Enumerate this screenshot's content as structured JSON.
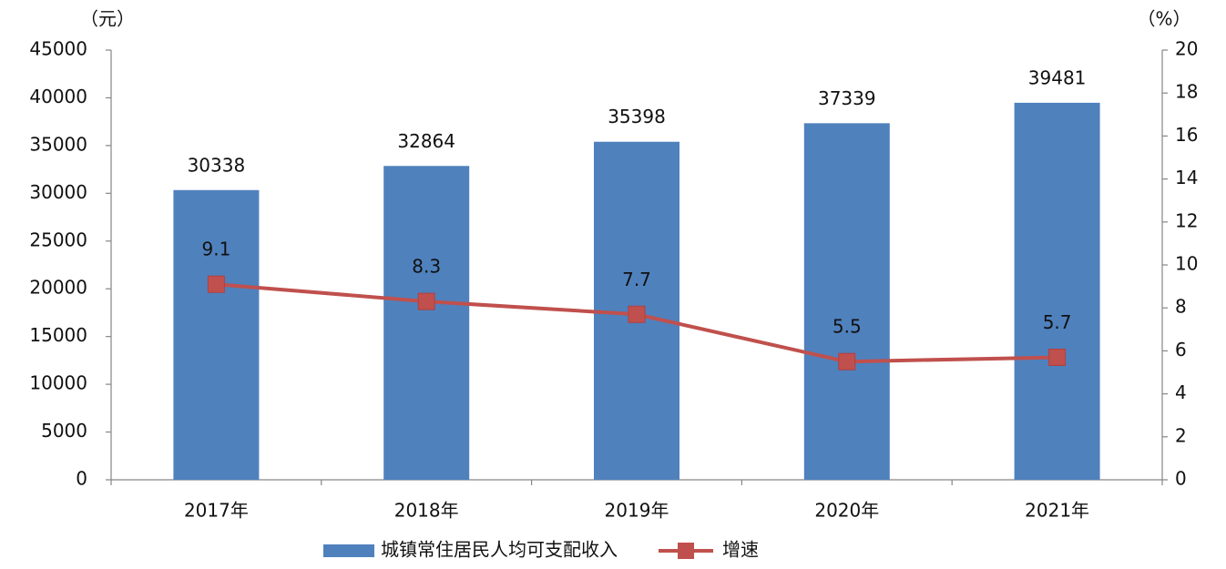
{
  "chart_data": {
    "type": "bar",
    "y_label": "（元）",
    "y2_label": "（%）",
    "categories": [
      "2017年",
      "2018年",
      "2019年",
      "2020年",
      "2021年"
    ],
    "series": [
      {
        "name": "城镇常住居民人均可支配收入",
        "type": "bar",
        "color": "#4f81bd",
        "values": [
          30338,
          32864,
          35398,
          37339,
          39481
        ]
      },
      {
        "name": "增速",
        "type": "line",
        "axis": "y2",
        "color": "#c0504d",
        "values": [
          9.1,
          8.3,
          7.7,
          5.5,
          5.7
        ]
      }
    ],
    "ylim": [
      0,
      45000
    ],
    "yticks": [
      0,
      5000,
      10000,
      15000,
      20000,
      25000,
      30000,
      35000,
      40000,
      45000
    ],
    "y2lim": [
      0,
      20
    ],
    "y2ticks": [
      0,
      2,
      4,
      6,
      8,
      10,
      12,
      14,
      16,
      18,
      20
    ],
    "grid": false,
    "legend": "bottom"
  }
}
